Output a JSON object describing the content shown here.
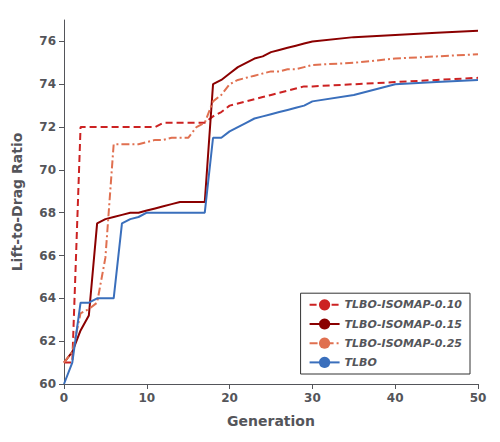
{
  "chart_data": {
    "type": "line",
    "xlabel": "Generation",
    "ylabel": "Lift-to-Drag Ratio",
    "xlim": [
      0,
      50
    ],
    "xticks": [
      0,
      10,
      20,
      30,
      40,
      50
    ],
    "ylim": [
      60,
      77
    ],
    "yticks": [
      60,
      62,
      64,
      66,
      68,
      70,
      72,
      74,
      76
    ],
    "grid": false,
    "legend": "lower right",
    "x": [
      0,
      1,
      2,
      3,
      4,
      5,
      6,
      7,
      8,
      9,
      10,
      11,
      12,
      13,
      14,
      15,
      16,
      17,
      18,
      19,
      20,
      21,
      22,
      23,
      24,
      25,
      26,
      27,
      28,
      29,
      30,
      35,
      40,
      45,
      50
    ],
    "series": [
      {
        "name": "TLBO-ISOMAP-0.10",
        "color": "#cc2222",
        "line_style": "dashed",
        "values": [
          61,
          61,
          72,
          72,
          72,
          72,
          72,
          72,
          72,
          72,
          72,
          72,
          72.2,
          72.2,
          72.2,
          72.2,
          72.2,
          72.2,
          72.5,
          72.7,
          73,
          73.1,
          73.2,
          73.3,
          73.4,
          73.5,
          73.6,
          73.7,
          73.8,
          73.9,
          73.9,
          74.0,
          74.1,
          74.2,
          74.3
        ]
      },
      {
        "name": "TLBO-ISOMAP-0.15",
        "color": "#8b0000",
        "line_style": "solid",
        "values": [
          61,
          61.5,
          62.5,
          63.2,
          67.5,
          67.7,
          67.8,
          67.9,
          68.0,
          68.0,
          68.1,
          68.2,
          68.3,
          68.4,
          68.5,
          68.5,
          68.5,
          68.5,
          74.0,
          74.2,
          74.5,
          74.8,
          75.0,
          75.2,
          75.3,
          75.5,
          75.6,
          75.7,
          75.8,
          75.9,
          76.0,
          76.2,
          76.3,
          76.4,
          76.5
        ]
      },
      {
        "name": "TLBO-ISOMAP-0.25",
        "color": "#e07050",
        "line_style": "dashdot",
        "values": [
          61,
          61.5,
          63.3,
          63.5,
          63.8,
          65.9,
          71.2,
          71.2,
          71.2,
          71.2,
          71.3,
          71.4,
          71.4,
          71.5,
          71.5,
          71.5,
          72.0,
          72.2,
          73.2,
          73.5,
          74.0,
          74.2,
          74.3,
          74.4,
          74.5,
          74.6,
          74.6,
          74.7,
          74.7,
          74.8,
          74.9,
          75.0,
          75.2,
          75.3,
          75.4
        ]
      },
      {
        "name": "TLBO",
        "color": "#3a6fbc",
        "line_style": "solid",
        "values": [
          60,
          61,
          63.8,
          63.8,
          64.0,
          64.0,
          64.0,
          67.5,
          67.7,
          67.8,
          68.0,
          68.0,
          68.0,
          68.0,
          68.0,
          68.0,
          68.0,
          68.0,
          71.5,
          71.5,
          71.8,
          72.0,
          72.2,
          72.4,
          72.5,
          72.6,
          72.7,
          72.8,
          72.9,
          73.0,
          73.2,
          73.5,
          74.0,
          74.1,
          74.2
        ]
      }
    ]
  }
}
